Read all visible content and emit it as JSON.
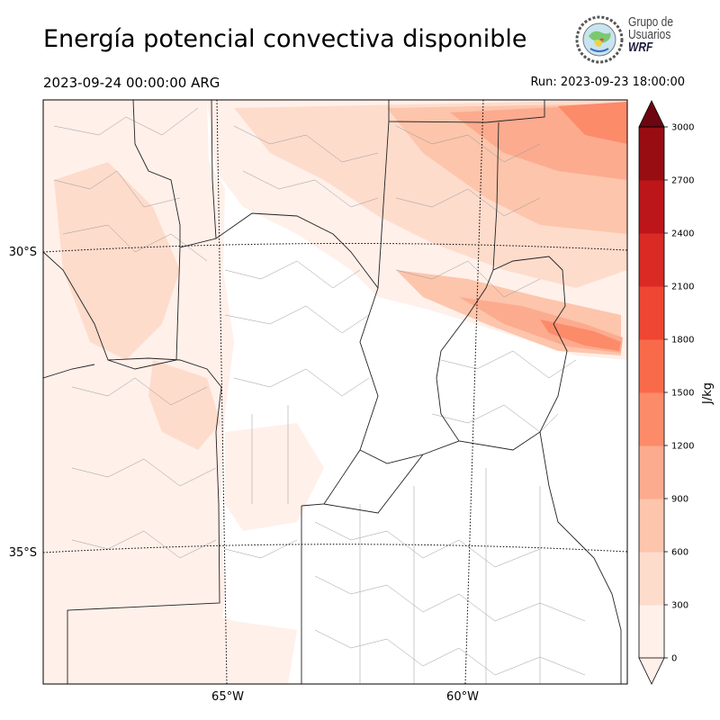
{
  "title": "Energía potencial convectiva disponible",
  "valid_time": "2023-09-24 00:00:00 ARG",
  "run_time": "Run: 2023-09-23 18:00:00",
  "logo": {
    "line1": "Grupo de",
    "line2": "Usuarios",
    "line3": "WRF"
  },
  "map": {
    "lat_labels": [
      "30°S",
      "35°S"
    ],
    "lon_labels": [
      "65°W",
      "60°W"
    ]
  },
  "colorbar": {
    "label": "J/kg",
    "ticks": [
      "0",
      "300",
      "600",
      "900",
      "1200",
      "1500",
      "1800",
      "2100",
      "2400",
      "2700",
      "3000"
    ],
    "colors": [
      "#fff0ea",
      "#fedccc",
      "#fdc5ab",
      "#fcab8f",
      "#fc8b6a",
      "#f96a4b",
      "#ef4533",
      "#d92a24",
      "#bc151a",
      "#980d12",
      "#6d0610"
    ],
    "extend": "both"
  }
}
